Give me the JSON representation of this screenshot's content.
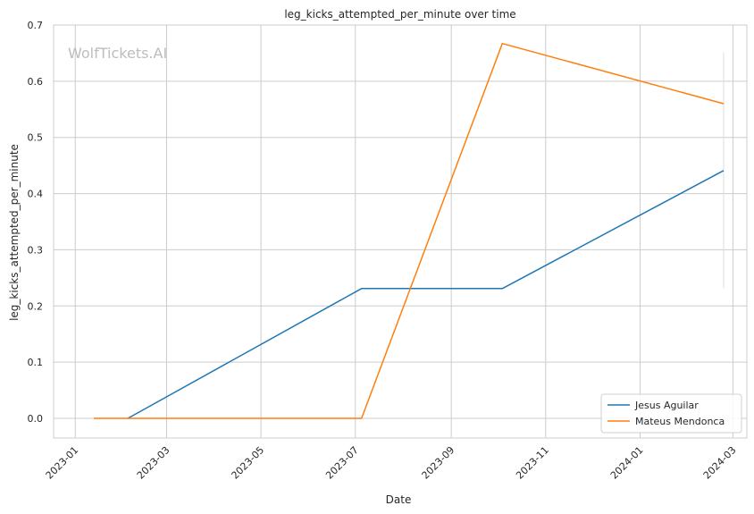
{
  "chart_data": {
    "type": "line",
    "title": "leg_kicks_attempted_per_minute over time",
    "xlabel": "Date",
    "ylabel": "leg_kicks_attempted_per_minute",
    "watermark": "WolfTickets.AI",
    "x_type": "date",
    "xlim": [
      "2022-12-18",
      "2024-03-10"
    ],
    "ylim": [
      -0.035,
      0.7
    ],
    "x_ticks": [
      "2023-01-01",
      "2023-03-01",
      "2023-05-01",
      "2023-07-01",
      "2023-09-01",
      "2023-11-01",
      "2024-01-01",
      "2024-03-01"
    ],
    "x_tick_labels": [
      "2023-01",
      "2023-03",
      "2023-05",
      "2023-07",
      "2023-09",
      "2023-11",
      "2024-01",
      "2024-03"
    ],
    "y_ticks": [
      0.0,
      0.1,
      0.2,
      0.3,
      0.4,
      0.5,
      0.6,
      0.7
    ],
    "y_tick_labels": [
      "0.0",
      "0.1",
      "0.2",
      "0.3",
      "0.4",
      "0.5",
      "0.6",
      "0.7"
    ],
    "grid": true,
    "legend_position": "bottom-right",
    "series": [
      {
        "name": "Jesus Aguilar",
        "color": "#1f77b4",
        "x": [
          "2023-02-04",
          "2023-07-05",
          "2023-10-04",
          "2024-02-24"
        ],
        "y": [
          0.0,
          0.231,
          0.231,
          0.441
        ]
      },
      {
        "name": "Mateus Mendonca",
        "color": "#ff7f0e",
        "x": [
          "2023-01-13",
          "2023-07-05",
          "2023-10-04",
          "2024-02-24"
        ],
        "y": [
          0.0,
          0.0,
          0.667,
          0.56
        ]
      }
    ],
    "error_bars": [
      {
        "x": "2024-02-24",
        "y_low": 0.231,
        "y_high": 0.651,
        "color": "#dddddd"
      }
    ]
  }
}
